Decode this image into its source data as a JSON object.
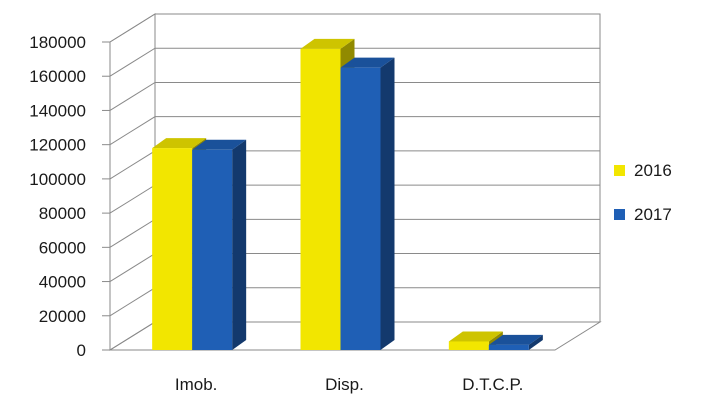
{
  "chart_data": {
    "type": "bar",
    "subtype": "3d-clustered-column",
    "categories": [
      "Imob.",
      "Disp.",
      "D.T.C.P."
    ],
    "series": [
      {
        "name": "2016",
        "values": [
          118000,
          176000,
          5000
        ],
        "color": "#F2E600"
      },
      {
        "name": "2017",
        "values": [
          117000,
          165000,
          3000
        ],
        "color": "#1F5FB5"
      }
    ],
    "ylim": [
      0,
      180000
    ],
    "yticks": [
      0,
      20000,
      40000,
      60000,
      80000,
      100000,
      120000,
      140000,
      160000,
      180000
    ],
    "grid": true,
    "legend_position": "right"
  }
}
